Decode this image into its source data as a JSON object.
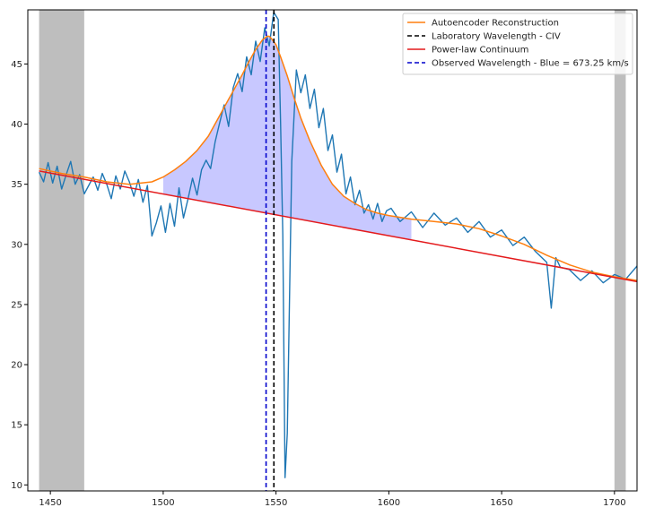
{
  "chart_data": {
    "type": "line",
    "title": "",
    "xlabel": "",
    "ylabel": "",
    "xlim": [
      1440,
      1710
    ],
    "ylim": [
      9.5,
      49.5
    ],
    "xticks": [
      1450,
      1500,
      1550,
      1600,
      1650,
      1700
    ],
    "yticks": [
      10,
      15,
      20,
      25,
      30,
      35,
      40,
      45
    ],
    "grid": false,
    "legend_position": "top-right",
    "shaded_regions": [
      {
        "x_start": 1445,
        "x_end": 1465,
        "color": "#bebebe"
      },
      {
        "x_start": 1700,
        "x_end": 1705,
        "color": "#bebebe"
      }
    ],
    "fill_between": {
      "x_start": 1500,
      "x_end": 1610,
      "color": "#c8c8ff",
      "between": [
        "Autoencoder Reconstruction",
        "Power-law Continuum"
      ]
    },
    "vertical_lines": [
      {
        "x": 1549.06,
        "style": "dashed",
        "color": "#000000",
        "label": "Laboratory Wavelength - CIV"
      },
      {
        "x": 1545.6,
        "style": "dashed",
        "color": "#0000cc",
        "label": "Observed Wavelength - Blue = 673.25 km/s"
      }
    ],
    "series": [
      {
        "name": "Autoencoder Reconstruction",
        "color": "#ff7f0e",
        "x": [
          1445,
          1455,
          1465,
          1475,
          1485,
          1495,
          1500,
          1505,
          1510,
          1515,
          1520,
          1525,
          1530,
          1535,
          1538,
          1541,
          1544,
          1546,
          1547,
          1548,
          1550,
          1552,
          1555,
          1558,
          1561,
          1565,
          1570,
          1575,
          1580,
          1585,
          1590,
          1595,
          1600,
          1610,
          1620,
          1630,
          1640,
          1650,
          1660,
          1670,
          1680,
          1690,
          1700,
          1710
        ],
        "y": [
          36.3,
          35.9,
          35.6,
          35.2,
          35.0,
          35.2,
          35.6,
          36.2,
          36.9,
          37.8,
          39.0,
          40.7,
          42.4,
          44.1,
          45.2,
          46.2,
          47.0,
          47.3,
          47.3,
          47.1,
          46.6,
          45.6,
          44.0,
          42.2,
          40.5,
          38.6,
          36.6,
          35.0,
          34.0,
          33.4,
          32.9,
          32.6,
          32.4,
          32.1,
          31.9,
          31.7,
          31.3,
          30.7,
          30.0,
          29.1,
          28.3,
          27.7,
          27.3,
          27.0
        ]
      },
      {
        "name": "Power-law Continuum",
        "color": "#e41a1c",
        "x": [
          1445,
          1710
        ],
        "y": [
          36.1,
          26.9
        ]
      },
      {
        "name": "",
        "color": "#1f77b4",
        "x": [
          1445,
          1447,
          1449,
          1451,
          1453,
          1455,
          1457,
          1459,
          1461,
          1463,
          1465,
          1467,
          1469,
          1471,
          1473,
          1475,
          1477,
          1479,
          1481,
          1483,
          1485,
          1487,
          1489,
          1491,
          1493,
          1495,
          1497,
          1499,
          1501,
          1503,
          1505,
          1507,
          1509,
          1511,
          1513,
          1515,
          1517,
          1519,
          1521,
          1523,
          1525,
          1527,
          1529,
          1531,
          1533,
          1535,
          1537,
          1539,
          1541,
          1543,
          1545,
          1547,
          1549,
          1551,
          1552,
          1553,
          1554,
          1555,
          1557,
          1559,
          1561,
          1563,
          1565,
          1567,
          1569,
          1571,
          1573,
          1575,
          1577,
          1579,
          1581,
          1583,
          1585,
          1587,
          1589,
          1591,
          1593,
          1595,
          1597,
          1599,
          1601,
          1605,
          1610,
          1615,
          1620,
          1625,
          1630,
          1635,
          1640,
          1645,
          1650,
          1655,
          1660,
          1665,
          1670,
          1672,
          1674,
          1676,
          1680,
          1685,
          1690,
          1695,
          1700,
          1705,
          1710
        ],
        "y": [
          36.0,
          35.2,
          36.8,
          35.1,
          36.5,
          34.6,
          35.8,
          36.9,
          35.0,
          35.8,
          34.2,
          34.9,
          35.6,
          34.5,
          35.9,
          35.0,
          33.8,
          35.7,
          34.6,
          36.1,
          35.2,
          34.0,
          35.4,
          33.5,
          34.9,
          30.7,
          31.8,
          33.2,
          31.0,
          33.4,
          31.5,
          34.7,
          32.2,
          33.8,
          35.5,
          34.1,
          36.2,
          37.0,
          36.3,
          38.5,
          40.1,
          41.6,
          39.8,
          43.0,
          44.2,
          42.7,
          45.6,
          44.1,
          46.9,
          45.2,
          48.0,
          46.5,
          49.3,
          48.7,
          40.2,
          30.8,
          10.6,
          14.3,
          36.9,
          44.5,
          42.6,
          44.1,
          41.3,
          42.9,
          39.7,
          41.3,
          37.8,
          39.1,
          36.0,
          37.5,
          34.2,
          35.6,
          33.3,
          34.5,
          32.6,
          33.3,
          32.1,
          33.4,
          31.9,
          32.8,
          33.0,
          31.9,
          32.7,
          31.4,
          32.6,
          31.6,
          32.2,
          31.0,
          31.9,
          30.6,
          31.2,
          29.9,
          30.6,
          29.4,
          28.5,
          24.7,
          28.9,
          28.1,
          27.9,
          27.0,
          27.8,
          26.8,
          27.5,
          27.1,
          28.2
        ]
      }
    ],
    "legend": [
      {
        "label": "Autoencoder Reconstruction",
        "color": "#ff7f0e",
        "style": "solid"
      },
      {
        "label": "Laboratory Wavelength - CIV",
        "color": "#000000",
        "style": "dashed"
      },
      {
        "label": "Power-law Continuum",
        "color": "#e41a1c",
        "style": "solid"
      },
      {
        "label": "Observed Wavelength - Blue = 673.25 km/s",
        "color": "#0000cc",
        "style": "dashed"
      }
    ]
  }
}
